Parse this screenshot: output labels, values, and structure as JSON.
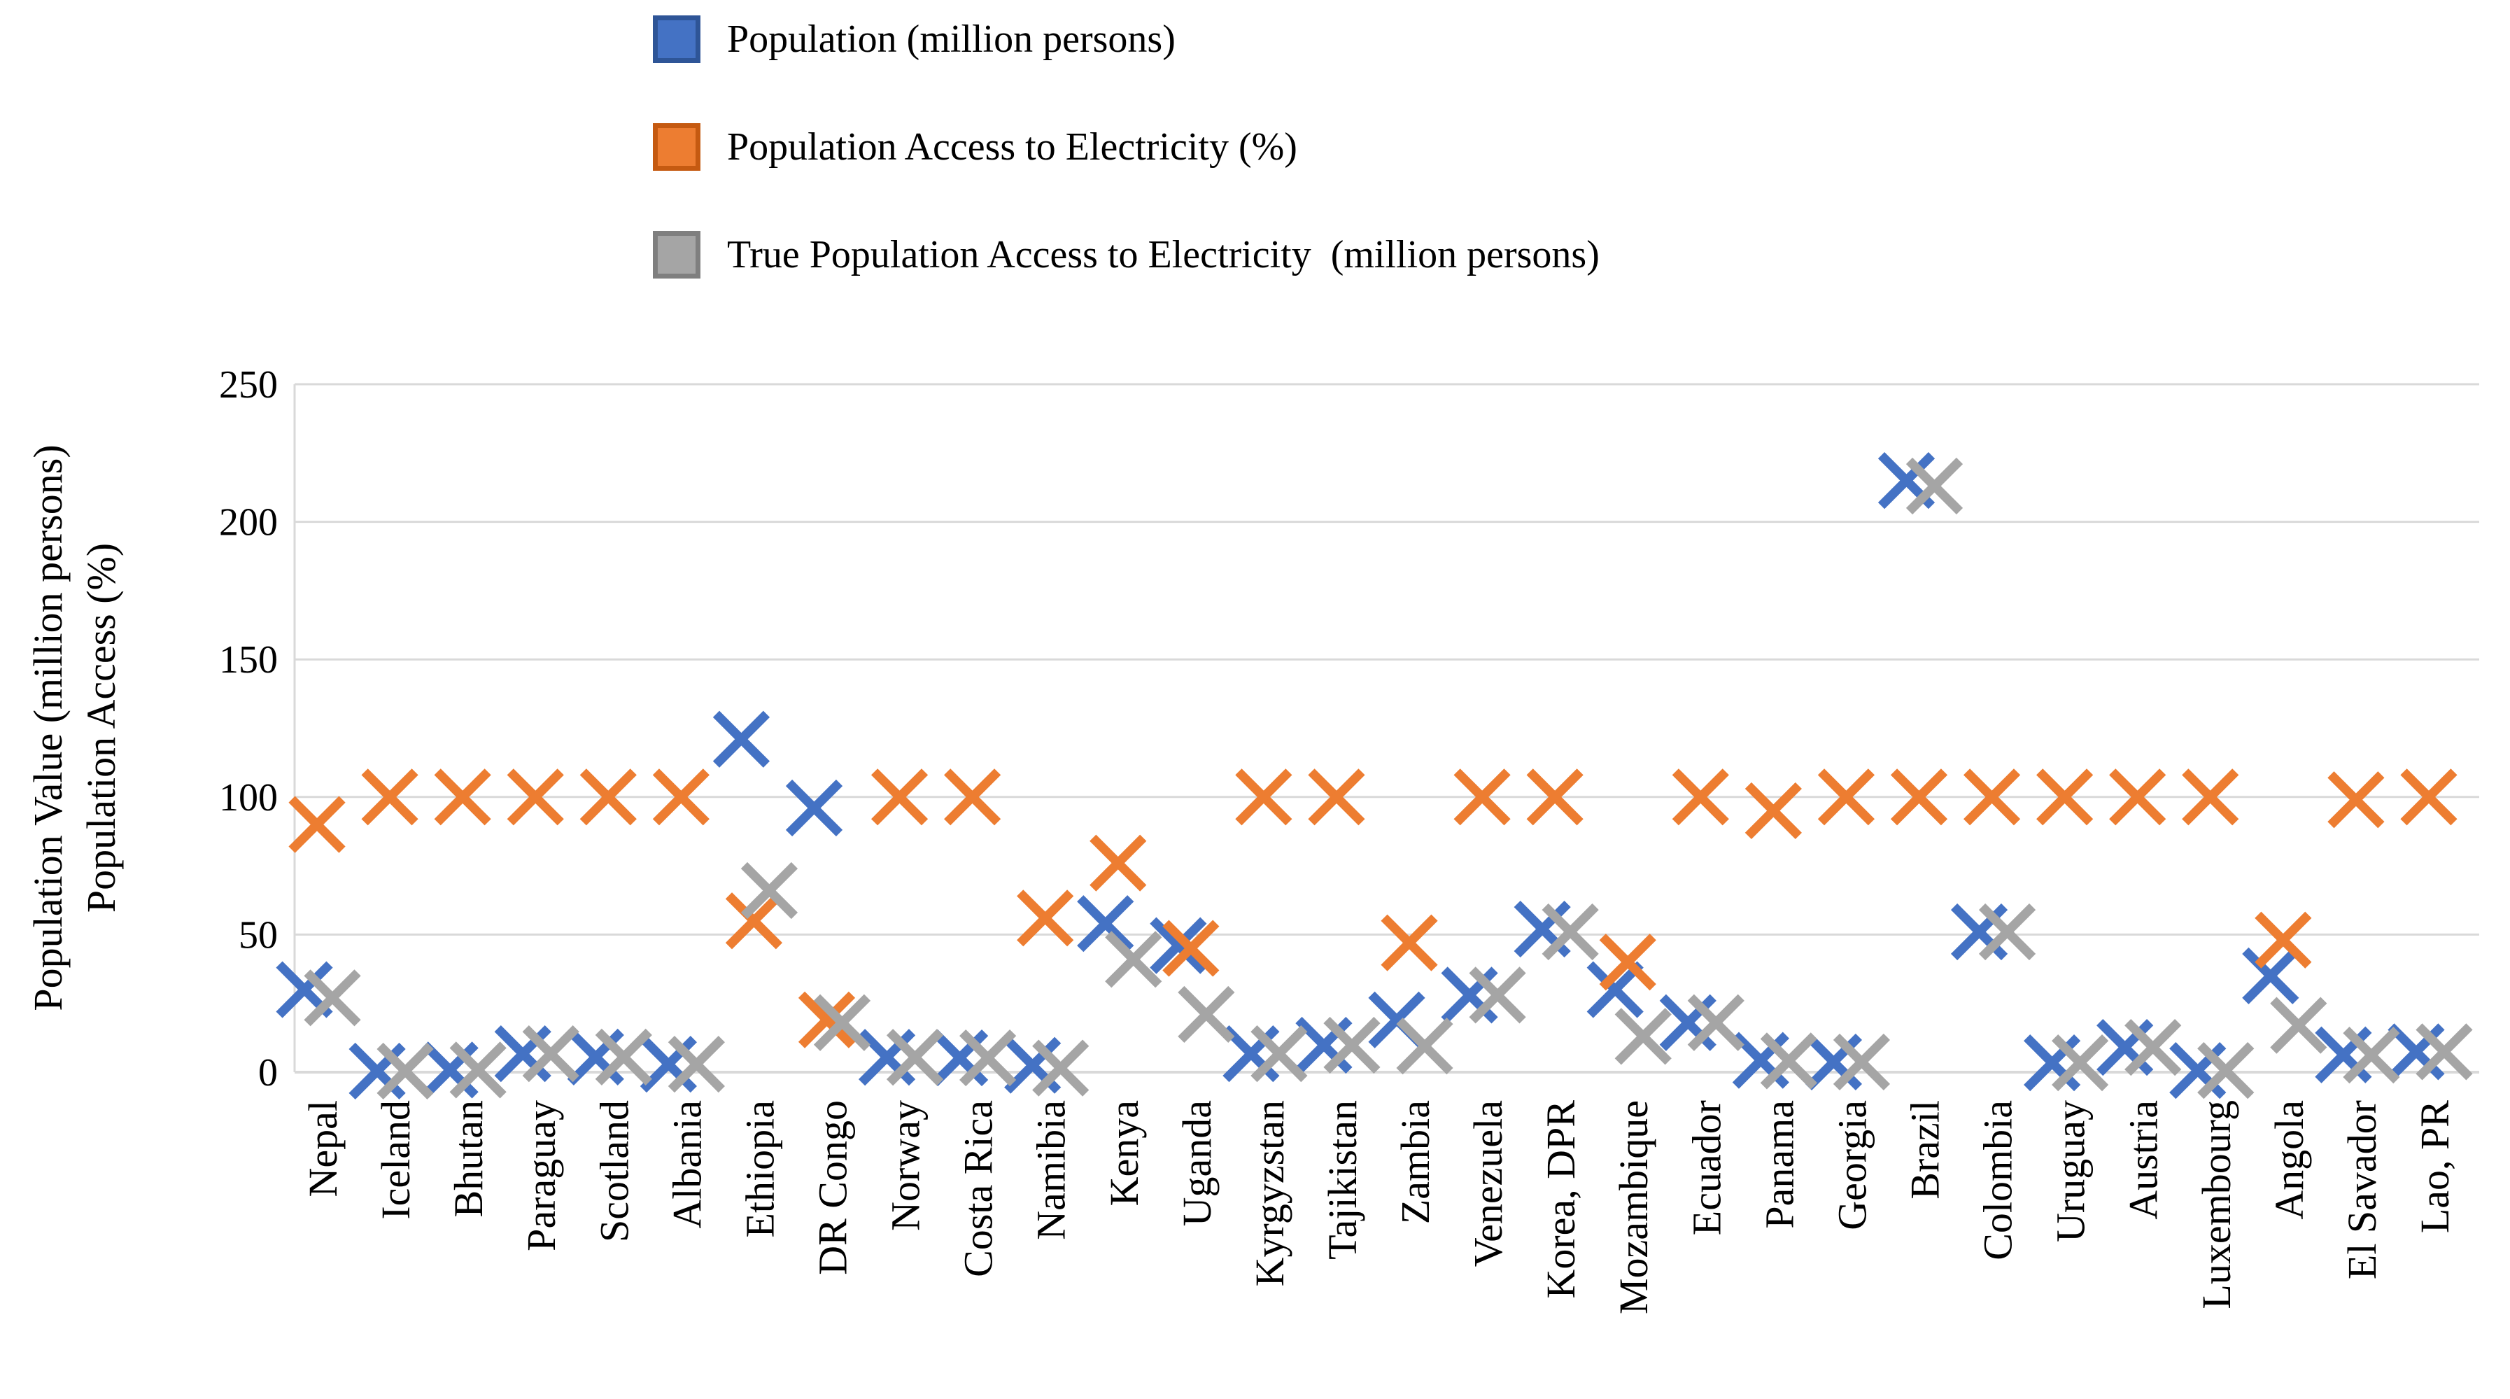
{
  "chart_data": {
    "type": "scatter",
    "title": "",
    "marker": "x",
    "grid": true,
    "legend_position": "top-center",
    "ylim": [
      0,
      250
    ],
    "yticks": [
      0,
      50,
      100,
      150,
      200,
      250
    ],
    "ylabel_line1": "Population Value (million persons)",
    "ylabel_line2": "Population Access (%)",
    "categories": [
      "Nepal",
      "Iceland",
      "Bhutan",
      "Paraguay",
      "Scotland",
      "Albania",
      "Ethiopia",
      "DR Congo",
      "Norway",
      "Costa Rica",
      "Namibia",
      "Kenya",
      "Uganda",
      "Kyrgyzstan",
      "Tajikistan",
      "Zambia",
      "Venezuela",
      "Korea, DPR",
      "Mozambique",
      "Ecuador",
      "Panama",
      "Georgia",
      "Brazil",
      "Colombia",
      "Uruguay",
      "Austria",
      "Luxembourg",
      "Angola",
      "El Savador",
      "Lao, PR"
    ],
    "series": [
      {
        "name": "Population (million persons)",
        "color": "#4472C4",
        "values": [
          30,
          0.4,
          0.8,
          6.7,
          5.5,
          2.9,
          121,
          96,
          5.4,
          5.2,
          2.5,
          54,
          46,
          6.7,
          9.8,
          19,
          28,
          52,
          30,
          18,
          4.3,
          3.7,
          215,
          51,
          3.4,
          9,
          0.6,
          35,
          6.3,
          7.4
        ]
      },
      {
        "name": "Population Access to Electricity (%)",
        "color": "#ED7D31",
        "values": [
          90,
          100,
          100,
          100,
          100,
          100,
          55,
          19,
          100,
          100,
          56,
          76,
          45,
          100,
          100,
          47,
          100,
          100,
          40,
          100,
          95,
          100,
          100,
          100,
          100,
          100,
          100,
          48,
          99,
          100
        ]
      },
      {
        "name": "True Population Access to Electricity  (million persons)",
        "color": "#A5A5A5",
        "values": [
          27,
          0.4,
          0.8,
          6.7,
          5.5,
          2.9,
          66,
          18,
          5.4,
          5.2,
          1.5,
          41,
          21,
          6.7,
          9.8,
          9.5,
          28,
          51,
          13,
          18,
          4.1,
          3.7,
          213,
          51,
          3.4,
          9,
          0.6,
          17,
          6.2,
          7.4
        ]
      }
    ]
  },
  "colors": {
    "gridline": "#D9D9D9",
    "axis_line": "#D9D9D9",
    "text": "#000000",
    "blue": "#4472C4",
    "orange": "#ED7D31",
    "gray": "#A5A5A5"
  }
}
